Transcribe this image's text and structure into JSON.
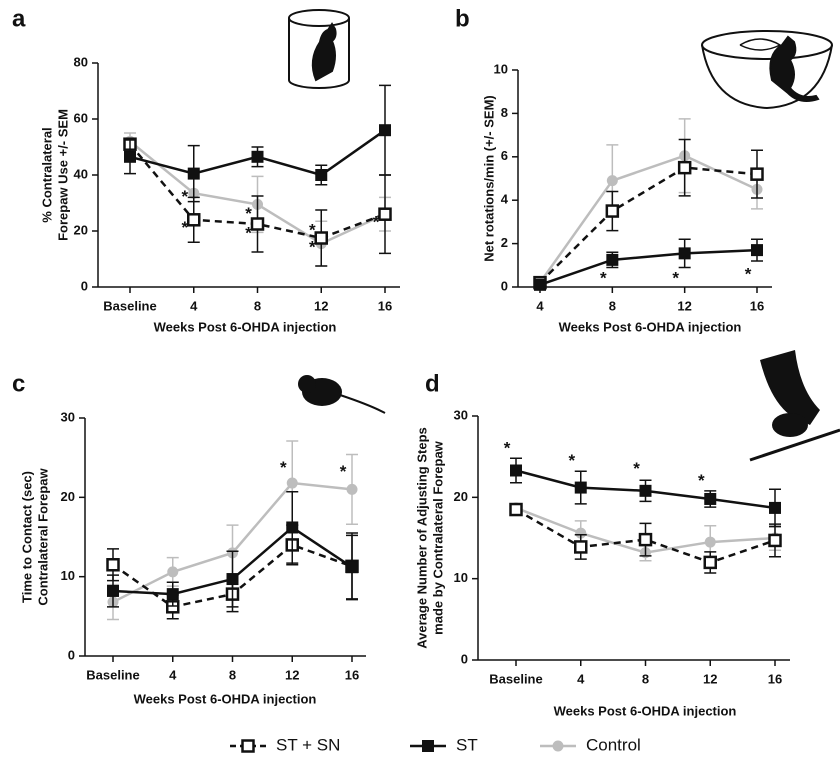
{
  "chart_data": [
    {
      "type": "line",
      "panel": "a",
      "ylabel": [
        "% Contralateral",
        "Forepaw Use +/- SEM"
      ],
      "xlabel": "Weeks Post 6-OHDA injection",
      "categories": [
        "Baseline",
        "4",
        "8",
        "12",
        "16"
      ],
      "ylim": [
        0,
        80
      ],
      "yticks": [
        0,
        20,
        40,
        60,
        80
      ],
      "series": [
        {
          "name": "ST + SN",
          "color": "#111111",
          "marker": "open-square",
          "dashed": true,
          "values": [
            51,
            24,
            22.5,
            17.5,
            26
          ],
          "errors": [
            2,
            8,
            10,
            10,
            14
          ]
        },
        {
          "name": "ST",
          "color": "#111111",
          "marker": "square",
          "dashed": false,
          "values": [
            46.5,
            40.5,
            46.5,
            40,
            56
          ],
          "errors": [
            6,
            10,
            3.5,
            3.5,
            16
          ]
        },
        {
          "name": "Control",
          "color": "#bdbdbd",
          "marker": "circle",
          "dashed": false,
          "values": [
            52,
            33.5,
            29.5,
            15.5,
            26
          ],
          "errors": [
            3,
            8,
            10,
            8,
            6
          ]
        }
      ],
      "annotations": [
        {
          "text": "*",
          "x": "4",
          "y": 33
        },
        {
          "text": "*",
          "x": "4",
          "y": 22
        },
        {
          "text": "*",
          "x": "8",
          "y": 27
        },
        {
          "text": "*",
          "x": "8",
          "y": 20
        },
        {
          "text": "*",
          "x": "12",
          "y": 21
        },
        {
          "text": "*",
          "x": "12",
          "y": 15
        },
        {
          "text": "*",
          "x": "16",
          "y": 24
        }
      ]
    },
    {
      "type": "line",
      "panel": "b",
      "ylabel": [
        "Net rotations/min (+/- SEM)"
      ],
      "xlabel": "Weeks Post 6-OHDA injection",
      "categories": [
        "4",
        "8",
        "12",
        "16"
      ],
      "ylim": [
        0,
        10
      ],
      "yticks": [
        0,
        2,
        4,
        6,
        8,
        10
      ],
      "series": [
        {
          "name": "ST + SN",
          "color": "#111111",
          "marker": "open-square",
          "dashed": true,
          "values": [
            0.2,
            3.5,
            5.5,
            5.2
          ],
          "errors": [
            0.1,
            0.9,
            1.3,
            1.1
          ]
        },
        {
          "name": "ST",
          "color": "#111111",
          "marker": "square",
          "dashed": false,
          "values": [
            0.1,
            1.25,
            1.55,
            1.7
          ],
          "errors": [
            0.1,
            0.35,
            0.65,
            0.5
          ]
        },
        {
          "name": "Control",
          "color": "#bdbdbd",
          "marker": "circle",
          "dashed": false,
          "values": [
            0.2,
            4.9,
            6.05,
            4.5
          ],
          "errors": [
            0.1,
            1.65,
            1.7,
            0.9
          ]
        }
      ],
      "annotations": [
        {
          "text": "*",
          "x": "8",
          "y": 0.5
        },
        {
          "text": "*",
          "x": "12",
          "y": 0.5
        },
        {
          "text": "*",
          "x": "16",
          "y": 0.7
        }
      ]
    },
    {
      "type": "line",
      "panel": "c",
      "ylabel": [
        "Time to Contact (sec)",
        "Contralateral Forepaw"
      ],
      "xlabel": "Weeks Post 6-OHDA injection",
      "categories": [
        "Baseline",
        "4",
        "8",
        "12",
        "16"
      ],
      "ylim": [
        0,
        30
      ],
      "yticks": [
        0,
        10,
        20,
        30
      ],
      "series": [
        {
          "name": "ST + SN",
          "color": "#111111",
          "marker": "open-square",
          "dashed": true,
          "values": [
            11.5,
            6.2,
            7.8,
            14,
            11.3
          ],
          "errors": [
            2,
            1.5,
            2.2,
            2.5,
            4.2
          ]
        },
        {
          "name": "ST",
          "color": "#111111",
          "marker": "square",
          "dashed": false,
          "values": [
            8.2,
            7.8,
            9.7,
            16.2,
            11.2
          ],
          "errors": [
            2,
            1.5,
            3.5,
            4.5,
            4
          ]
        },
        {
          "name": "Control",
          "color": "#bdbdbd",
          "marker": "circle",
          "dashed": false,
          "values": [
            6.8,
            10.6,
            13,
            21.8,
            21
          ],
          "errors": [
            2.2,
            1.8,
            3.5,
            5.3,
            4.4
          ]
        }
      ],
      "annotations": [
        {
          "text": "*",
          "x": "12",
          "y": 24
        },
        {
          "text": "*",
          "x": "16",
          "y": 23.5
        }
      ]
    },
    {
      "type": "line",
      "panel": "d",
      "ylabel": [
        "Average Number of Adjusting Steps",
        "made by Contralateral Forepaw"
      ],
      "xlabel": "Weeks Post 6-OHDA injection",
      "categories": [
        "Baseline",
        "4",
        "8",
        "12",
        "16"
      ],
      "ylim": [
        0,
        30
      ],
      "yticks": [
        0,
        10,
        20,
        30
      ],
      "series": [
        {
          "name": "ST + SN",
          "color": "#111111",
          "marker": "open-square",
          "dashed": true,
          "values": [
            18.5,
            13.9,
            14.8,
            12,
            14.7
          ],
          "errors": [
            0.5,
            1.5,
            2,
            1.3,
            2
          ]
        },
        {
          "name": "ST",
          "color": "#111111",
          "marker": "square",
          "dashed": false,
          "values": [
            23.3,
            21.2,
            20.8,
            19.8,
            18.7
          ],
          "errors": [
            1.5,
            2,
            1.3,
            1,
            2.3
          ]
        },
        {
          "name": "Control",
          "color": "#bdbdbd",
          "marker": "circle",
          "dashed": false,
          "values": [
            18.7,
            15.6,
            13.2,
            14.5,
            15
          ],
          "errors": [
            0.5,
            1.5,
            1,
            2,
            1.5
          ]
        }
      ],
      "annotations": [
        {
          "text": "*",
          "x": "Baseline",
          "y": 26.3
        },
        {
          "text": "*",
          "x": "4",
          "y": 24.8
        },
        {
          "text": "*",
          "x": "8",
          "y": 23.8
        },
        {
          "text": "*",
          "x": "12",
          "y": 22.3
        }
      ]
    }
  ]
}
